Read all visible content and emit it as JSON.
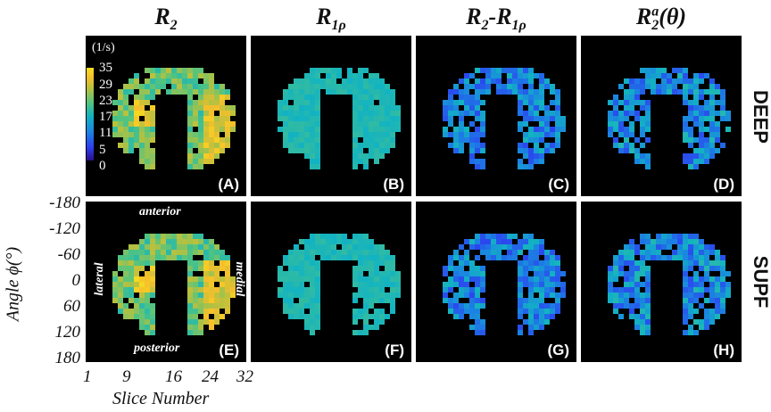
{
  "columns": [
    {
      "main": "R",
      "sub": "2",
      "sup": "",
      "rest": "",
      "rest_sub": "",
      "suffix": ""
    },
    {
      "main": "R",
      "sub": "1ρ",
      "sup": "",
      "rest": "",
      "rest_sub": "",
      "suffix": ""
    },
    {
      "main": "R",
      "sub": "2",
      "sup": "",
      "rest": "-R",
      "rest_sub": "1ρ",
      "suffix": ""
    },
    {
      "main": "R",
      "sub": "2",
      "sup": "a",
      "rest": "",
      "rest_sub": "",
      "suffix": "(θ)"
    }
  ],
  "rows": [
    "DEEP",
    "SUPF"
  ],
  "panels": [
    {
      "label": "(A)",
      "row": 0,
      "col": 0,
      "map": "R2"
    },
    {
      "label": "(B)",
      "row": 0,
      "col": 1,
      "map": "R1rho"
    },
    {
      "label": "(C)",
      "row": 0,
      "col": 2,
      "map": "diff"
    },
    {
      "label": "(D)",
      "row": 0,
      "col": 3,
      "map": "R2a"
    },
    {
      "label": "(E)",
      "row": 1,
      "col": 0,
      "map": "R2"
    },
    {
      "label": "(F)",
      "row": 1,
      "col": 1,
      "map": "R1rho"
    },
    {
      "label": "(G)",
      "row": 1,
      "col": 2,
      "map": "diff"
    },
    {
      "label": "(H)",
      "row": 1,
      "col": 3,
      "map": "R2a"
    }
  ],
  "colorbar": {
    "unit": "(1/s)",
    "ticks": [
      "35",
      "29",
      "23",
      "17",
      "11",
      "5",
      "0"
    ],
    "colors": [
      "#2c0d8a",
      "#2d3ef0",
      "#1b82e3",
      "#12b3c2",
      "#53c47f",
      "#b9c13e",
      "#f6bf2c",
      "#f5e11d"
    ]
  },
  "anatomy": {
    "anterior": "anterior",
    "posterior": "posterior",
    "lateral": "lateral",
    "medial": "medial"
  },
  "y_axis": {
    "title": "Angle ϕ(°)",
    "ticks": [
      "-180",
      "-120",
      "-60",
      "0",
      "60",
      "120",
      "180"
    ]
  },
  "x_axis": {
    "title": "Slice Number",
    "ticks": [
      "1",
      "9",
      "16",
      "24",
      "32"
    ]
  }
}
